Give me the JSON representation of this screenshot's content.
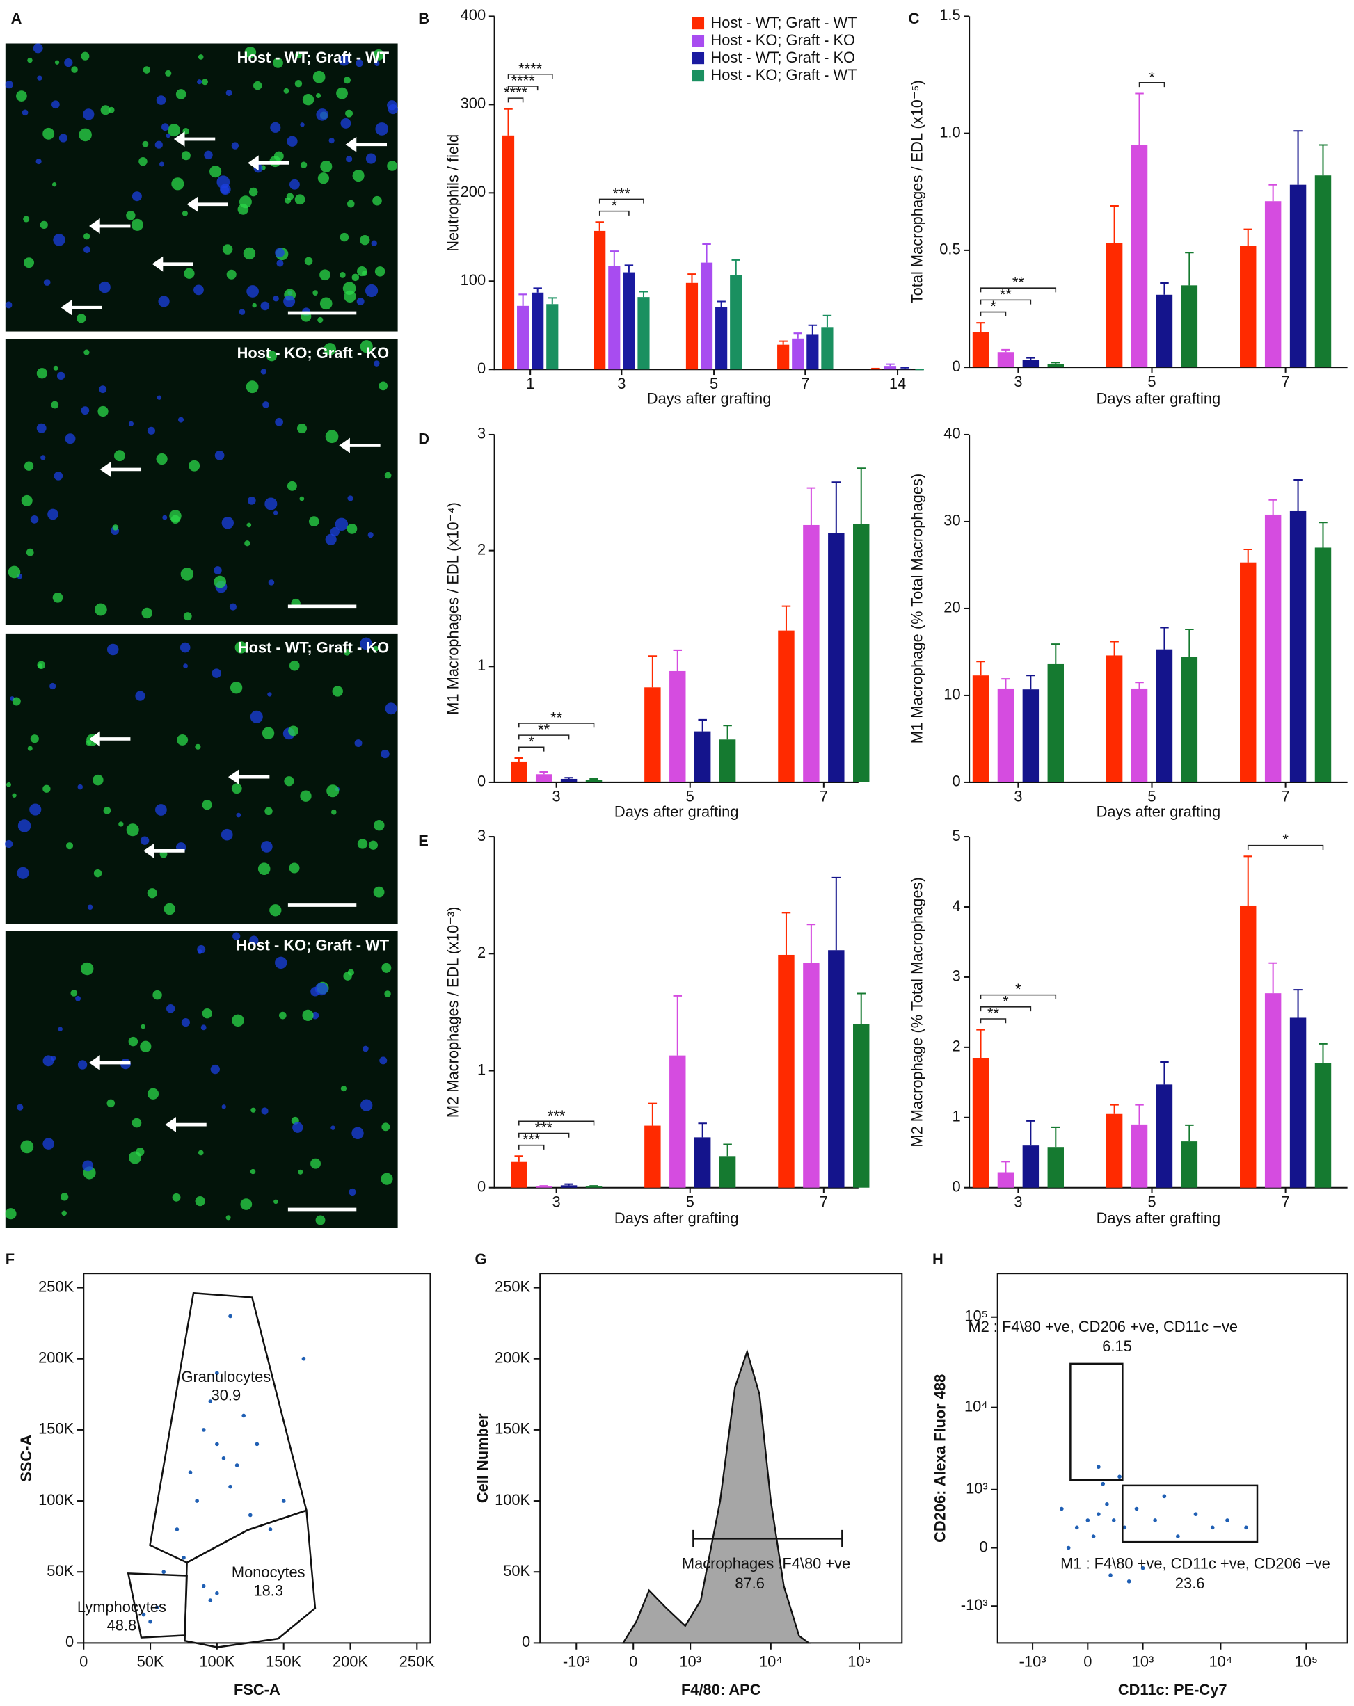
{
  "panel_a": {
    "letter": "A",
    "images": [
      {
        "label": "Host - WT; Graft - WT"
      },
      {
        "label": "Host - KO; Graft - KO"
      },
      {
        "label": "Host - WT; Graft - KO"
      },
      {
        "label": "Host - KO; Graft - WT"
      }
    ]
  },
  "chart_data": [
    {
      "type": "bar",
      "panel": "B",
      "ylabel": "Neutrophils / field",
      "xlabel": "Days after grafting",
      "categories": [
        "1",
        "3",
        "5",
        "7",
        "14"
      ],
      "ylim": [
        0,
        400
      ],
      "yticks": [
        0,
        100,
        200,
        300,
        400
      ],
      "series": [
        {
          "name": "Host - WT; Graft - WT",
          "color": "#ff2a00",
          "values": [
            265,
            157,
            98,
            28,
            1
          ],
          "errors": [
            30,
            10,
            10,
            4,
            0
          ]
        },
        {
          "name": "Host - KO; Graft - KO",
          "color": "#a84cf0",
          "values": [
            72,
            117,
            121,
            35,
            4
          ],
          "errors": [
            13,
            17,
            21,
            6,
            2
          ]
        },
        {
          "name": "Host - WT; Graft - KO",
          "color": "#1a1aa0",
          "values": [
            87,
            110,
            71,
            40,
            1
          ],
          "errors": [
            5,
            8,
            6,
            10,
            1
          ]
        },
        {
          "name": "Host - KO; Graft - WT",
          "color": "#1a9060",
          "values": [
            74,
            82,
            107,
            48,
            0
          ],
          "errors": [
            7,
            6,
            17,
            13,
            0
          ]
        }
      ],
      "annotations": [
        "****",
        "****",
        "****",
        "*",
        "***"
      ]
    },
    {
      "type": "bar",
      "panel": "C",
      "ylabel": "Total Macrophages / EDL (x10⁻⁵)",
      "xlabel": "Days after grafting",
      "categories": [
        "3",
        "5",
        "7"
      ],
      "ylim": [
        0,
        1.5
      ],
      "yticks": [
        0,
        0.5,
        {
          "value": 1,
          "label": "1.0"
        },
        1.5
      ],
      "series": [
        {
          "color": "#ff2a00",
          "values": [
            0.15,
            0.53,
            0.52
          ],
          "errors": [
            0.04,
            0.16,
            0.07
          ]
        },
        {
          "color": "#d54ce0",
          "values": [
            0.065,
            0.95,
            0.71
          ],
          "errors": [
            0.01,
            0.22,
            0.07
          ]
        },
        {
          "color": "#14148c",
          "values": [
            0.03,
            0.31,
            0.78
          ],
          "errors": [
            0.01,
            0.05,
            0.23
          ]
        },
        {
          "color": "#157a30",
          "values": [
            0.015,
            0.35,
            0.82
          ],
          "errors": [
            0.005,
            0.14,
            0.13
          ]
        }
      ],
      "annotations": [
        "*",
        "**",
        "**",
        "*"
      ]
    },
    {
      "type": "bar",
      "panel": "D",
      "ylabel": "M1 Macrophages / EDL (x10⁻⁴)",
      "xlabel": "Days after grafting",
      "categories": [
        "3",
        "5",
        "7"
      ],
      "ylim": [
        0,
        3
      ],
      "yticks": [
        0,
        1,
        2,
        3
      ],
      "series": [
        {
          "color": "#ff2a00",
          "values": [
            0.18,
            0.82,
            1.31
          ],
          "errors": [
            0.03,
            0.27,
            0.21
          ]
        },
        {
          "color": "#d54ce0",
          "values": [
            0.07,
            0.96,
            2.22
          ],
          "errors": [
            0.02,
            0.18,
            0.32
          ]
        },
        {
          "color": "#14148c",
          "values": [
            0.03,
            0.44,
            2.15
          ],
          "errors": [
            0.01,
            0.1,
            0.44
          ]
        },
        {
          "color": "#157a30",
          "values": [
            0.02,
            0.37,
            2.23
          ],
          "errors": [
            0.01,
            0.12,
            0.48
          ]
        }
      ],
      "annotations": [
        "*",
        "**",
        "**"
      ]
    },
    {
      "type": "bar",
      "ylabel": "M1 Macrophage (% Total Macrophages)",
      "xlabel": "Days after grafting",
      "categories": [
        "3",
        "5",
        "7"
      ],
      "ylim": [
        0,
        40
      ],
      "yticks": [
        0,
        10,
        20,
        30,
        40
      ],
      "series": [
        {
          "color": "#ff2a00",
          "values": [
            12.3,
            14.6,
            25.3
          ],
          "errors": [
            1.6,
            1.6,
            1.5
          ]
        },
        {
          "color": "#d54ce0",
          "values": [
            10.8,
            10.8,
            30.8
          ],
          "errors": [
            1.1,
            0.7,
            1.7
          ]
        },
        {
          "color": "#14148c",
          "values": [
            10.7,
            15.3,
            31.2
          ],
          "errors": [
            1.6,
            2.5,
            3.6
          ]
        },
        {
          "color": "#157a30",
          "values": [
            13.6,
            14.4,
            27
          ],
          "errors": [
            2.3,
            3.2,
            2.9
          ]
        }
      ],
      "annotations": []
    },
    {
      "type": "bar",
      "panel": "E",
      "ylabel": "M2 Macrophages / EDL (x10⁻³)",
      "xlabel": "Days after grafting",
      "categories": [
        "3",
        "5",
        "7"
      ],
      "ylim": [
        0,
        3
      ],
      "yticks": [
        0,
        1,
        2,
        3
      ],
      "series": [
        {
          "color": "#ff2a00",
          "values": [
            0.22,
            0.53,
            1.99
          ],
          "errors": [
            0.05,
            0.19,
            0.36
          ]
        },
        {
          "color": "#d54ce0",
          "values": [
            0.01,
            1.13,
            1.92
          ],
          "errors": [
            0.005,
            0.51,
            0.33
          ]
        },
        {
          "color": "#14148c",
          "values": [
            0.02,
            0.43,
            2.03
          ],
          "errors": [
            0.01,
            0.12,
            0.62
          ]
        },
        {
          "color": "#157a30",
          "values": [
            0.01,
            0.27,
            1.4
          ],
          "errors": [
            0.005,
            0.1,
            0.26
          ]
        }
      ],
      "annotations": [
        "***",
        "***",
        "***"
      ]
    },
    {
      "type": "bar",
      "ylabel": "M2 Macrophage (% Total Macrophages)",
      "xlabel": "Days after grafting",
      "categories": [
        "3",
        "5",
        "7"
      ],
      "ylim": [
        0,
        5
      ],
      "yticks": [
        0,
        1,
        2,
        3,
        4,
        5
      ],
      "series": [
        {
          "color": "#ff2a00",
          "values": [
            1.85,
            1.05,
            4.02
          ],
          "errors": [
            0.4,
            0.13,
            0.7
          ]
        },
        {
          "color": "#d54ce0",
          "values": [
            0.22,
            0.9,
            2.77
          ],
          "errors": [
            0.15,
            0.28,
            0.43
          ]
        },
        {
          "color": "#14148c",
          "values": [
            0.6,
            1.47,
            2.42
          ],
          "errors": [
            0.35,
            0.32,
            0.4
          ]
        },
        {
          "color": "#157a30",
          "values": [
            0.58,
            0.66,
            1.78
          ],
          "errors": [
            0.28,
            0.23,
            0.27
          ]
        }
      ],
      "annotations": [
        "**",
        "*",
        "*",
        "*"
      ]
    },
    {
      "type": "scatter",
      "panel": "F",
      "xlabel": "FSC-A",
      "ylabel": "SSC-A",
      "color": "#1f5fb4",
      "xlim": [
        0,
        260000
      ],
      "ylim": [
        0,
        260000
      ],
      "xticks": [
        0,
        {
          "value": 50000,
          "label": "50K"
        },
        {
          "value": 100000,
          "label": "100K"
        },
        {
          "value": 150000,
          "label": "150K"
        },
        {
          "value": 200000,
          "label": "200K"
        },
        {
          "value": 250000,
          "label": "250K"
        }
      ],
      "yticks": [
        0,
        {
          "value": 50000,
          "label": "50K"
        },
        {
          "value": 100000,
          "label": "100K"
        },
        {
          "value": 150000,
          "label": "150K"
        },
        {
          "value": 200000,
          "label": "200K"
        },
        {
          "value": 250000,
          "label": "250K"
        }
      ],
      "x": [
        60000,
        70000,
        80000,
        90000,
        95000,
        100000,
        105000,
        110000,
        115000,
        120000,
        85000,
        100000,
        125000,
        130000,
        75000,
        90000,
        95000,
        100000,
        45000,
        50000,
        55000,
        140000,
        150000,
        165000,
        110000
      ],
      "y": [
        50000,
        80000,
        120000,
        150000,
        170000,
        140000,
        130000,
        110000,
        125000,
        160000,
        100000,
        190000,
        90000,
        140000,
        60000,
        40000,
        30000,
        35000,
        20000,
        15000,
        25000,
        80000,
        100000,
        200000,
        230000
      ],
      "gates": [
        {
          "name": "Granulocytes",
          "value": 30.9
        },
        {
          "name": "Monocytes",
          "value": 18.3
        },
        {
          "name": "Lymphocytes",
          "value": 48.8
        }
      ]
    },
    {
      "type": "area",
      "panel": "G",
      "xlabel": "F4/80: APC",
      "ylabel": "Cell Number",
      "xscale": "biexponential",
      "color": "#a6a6a6",
      "xlim": [
        -3000,
        300000
      ],
      "ylim": [
        0,
        260000
      ],
      "xticks": [
        {
          "value": -1000,
          "label": "-10³"
        },
        0,
        {
          "value": 1000,
          "label": "10³"
        },
        {
          "value": 10000,
          "label": "10⁴"
        },
        {
          "value": 100000,
          "label": "10⁵"
        }
      ],
      "yticks": [
        0,
        {
          "value": 50000,
          "label": "50K"
        },
        {
          "value": 100000,
          "label": "100K"
        },
        {
          "value": 150000,
          "label": "150K"
        },
        {
          "value": 200000,
          "label": "200K"
        },
        {
          "value": 250000,
          "label": "250K"
        }
      ],
      "x": [
        -90,
        24,
        150,
        390,
        840,
        1400,
        2500,
        3800,
        5300,
        7400,
        10000,
        14100,
        21000,
        27000
      ],
      "values": [
        0,
        15000,
        37000,
        25000,
        12000,
        30000,
        100000,
        180000,
        205000,
        175000,
        100000,
        40000,
        5000,
        0
      ],
      "gates": [
        {
          "name": "Macrophages :F4\\80 +ve",
          "value": 87.6
        }
      ]
    },
    {
      "type": "scatter",
      "panel": "H",
      "xlabel": "CD11c: PE-Cy7",
      "ylabel": "CD206: Alexa Fluor 488",
      "xscale": "biexponential",
      "yscale": "biexponential",
      "color": "#1f5fb4",
      "xlim": [
        -3000,
        300000
      ],
      "ylim": [
        -3000,
        300000
      ],
      "xticks": [
        {
          "value": -1000,
          "label": "-10³"
        },
        0,
        {
          "value": 1000,
          "label": "10³"
        },
        {
          "value": 10000,
          "label": "10⁴"
        },
        {
          "value": 100000,
          "label": "10⁵"
        }
      ],
      "yticks": [
        {
          "value": -1000,
          "label": "-10³"
        },
        0,
        {
          "value": 1000,
          "label": "10³"
        },
        {
          "value": 10000,
          "label": "10⁴"
        },
        {
          "value": 100000,
          "label": "10⁵"
        }
      ],
      "x": [
        0,
        -100,
        100,
        50,
        200,
        -200,
        300,
        500,
        800,
        1500,
        3000,
        5000,
        8000,
        12000,
        2000,
        150,
        100,
        400,
        1000,
        600,
        20000,
        -300,
        250
      ],
      "y": [
        300,
        200,
        400,
        100,
        600,
        0,
        300,
        200,
        500,
        300,
        100,
        400,
        200,
        300,
        800,
        1200,
        2000,
        1500,
        -200,
        -400,
        200,
        500,
        -300
      ],
      "gates": [
        {
          "name": "M2 : F4\\80 +ve, CD206 +ve, CD11c −ve",
          "value": 6.15
        },
        {
          "name": "M1 : F4\\80 +ve, CD11c +ve, CD206 −ve",
          "value": 23.6
        }
      ]
    }
  ]
}
